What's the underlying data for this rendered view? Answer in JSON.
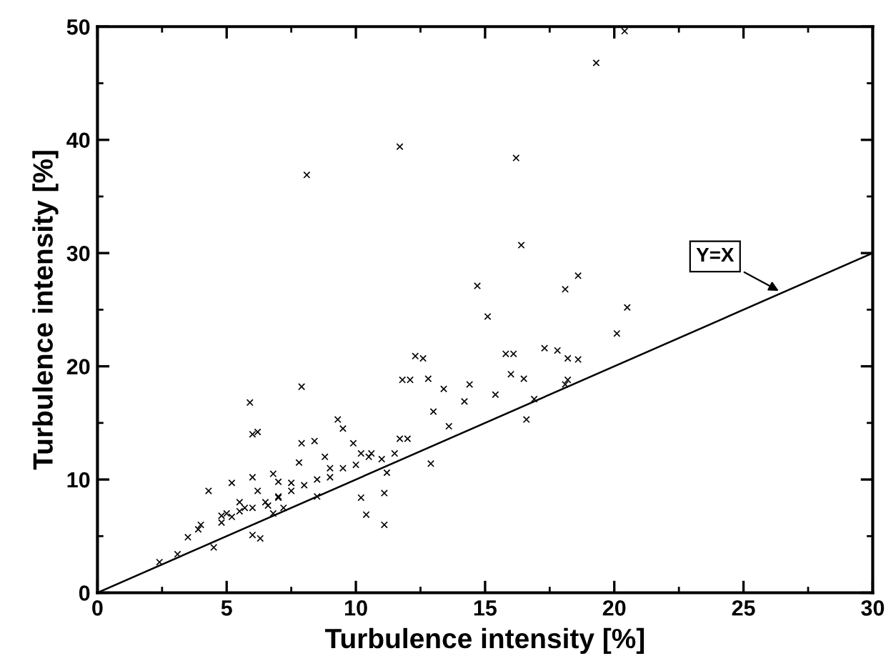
{
  "chart_data": {
    "type": "scatter",
    "xlabel": "Turbulence intensity [%]",
    "ylabel": "Turbulence intensity [%]",
    "xlim": [
      0,
      30
    ],
    "ylim": [
      0,
      50
    ],
    "xticks": [
      0,
      5,
      10,
      15,
      20,
      25,
      30
    ],
    "yticks": [
      0,
      10,
      20,
      30,
      40,
      50
    ],
    "grid": false,
    "marker": "cross",
    "annotations": [
      {
        "text": "Y=X",
        "x": 26.5,
        "y": 26.5
      }
    ],
    "series": [
      {
        "color": "#000000",
        "x": [
          20.4,
          19.3,
          11.7,
          8.1,
          16.2,
          16.4,
          14.7,
          18.6,
          18.1,
          15.1,
          20.5,
          20.1,
          12.6,
          16.1,
          17.8,
          18.6,
          2.4,
          3.1,
          3.5,
          4.5,
          4.3,
          5.2,
          5.9,
          6.0,
          6.2,
          7.9,
          6.0,
          6.3,
          3.9,
          4.8,
          5.2,
          5.7,
          6.6,
          7.0,
          7.5,
          7.9,
          8.4,
          9.0,
          9.3,
          9.5,
          9.9,
          10.2,
          10.6,
          10.2,
          10.4,
          11.1,
          11.1,
          11.2,
          11.7,
          11.8,
          12.1,
          12.3,
          12.8,
          13.0,
          13.4,
          12.9,
          13.6,
          14.4,
          14.2,
          15.4,
          15.8,
          16.0,
          16.5,
          16.9,
          16.6,
          17.3,
          18.2,
          18.1,
          18.2,
          5.0,
          5.5,
          6.0,
          6.5,
          7.0,
          7.5,
          8.0,
          8.5,
          9.0,
          7.0,
          6.2,
          5.5,
          4.8,
          4.0,
          6.8,
          7.2,
          8.5,
          9.5,
          10.0,
          10.5,
          11.0,
          11.5,
          12.0,
          6.0,
          6.8,
          7.8,
          8.8
        ],
        "values": [
          49.6,
          46.8,
          39.4,
          36.9,
          38.4,
          30.7,
          27.1,
          28.0,
          26.8,
          24.4,
          25.2,
          22.9,
          20.7,
          21.1,
          21.4,
          20.6,
          2.7,
          3.4,
          4.9,
          4.0,
          9.0,
          9.7,
          16.8,
          14.0,
          14.2,
          18.2,
          5.1,
          4.8,
          5.6,
          6.2,
          6.7,
          7.5,
          7.7,
          8.4,
          9.7,
          13.2,
          13.4,
          11.0,
          15.3,
          14.5,
          13.2,
          12.3,
          12.3,
          8.4,
          6.9,
          6.0,
          8.8,
          10.6,
          13.6,
          18.8,
          18.8,
          20.9,
          18.9,
          16.0,
          18.0,
          11.4,
          14.7,
          18.4,
          16.9,
          17.5,
          21.1,
          19.3,
          18.9,
          17.1,
          15.3,
          21.6,
          20.7,
          18.4,
          18.8,
          7.0,
          7.2,
          7.5,
          8.0,
          8.5,
          9.0,
          9.5,
          10.0,
          10.2,
          9.8,
          9.0,
          8.0,
          6.8,
          6.0,
          7.0,
          7.5,
          8.5,
          11.0,
          11.3,
          12.0,
          11.8,
          12.3,
          13.6,
          10.2,
          10.5,
          11.5,
          12.0
        ]
      },
      {
        "type": "line",
        "color": "#000000",
        "x": [
          0,
          30
        ],
        "values": [
          0,
          30
        ],
        "marker": "none"
      }
    ]
  }
}
